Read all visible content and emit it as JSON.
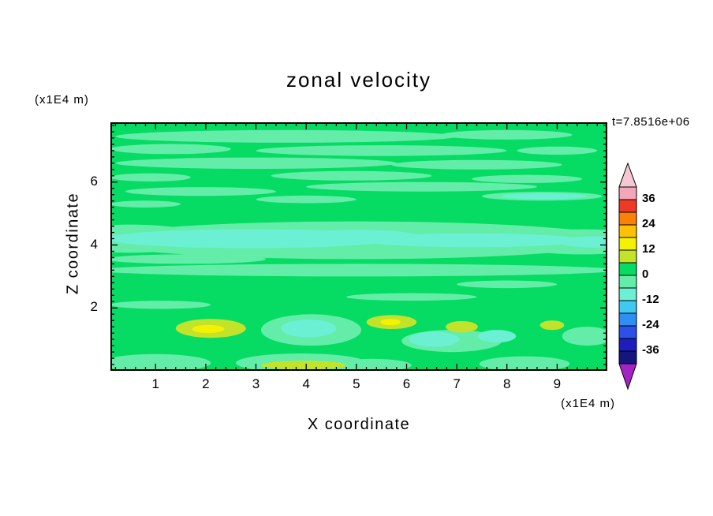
{
  "title": "zonal velocity",
  "timestamp": "t=7.8516e+06",
  "axes": {
    "x": {
      "label": "X coordinate",
      "unit": "(x1E4 m)",
      "tick_labels": [
        "1",
        "2",
        "3",
        "4",
        "5",
        "6",
        "7",
        "8",
        "9"
      ],
      "tick_values": [
        1,
        2,
        3,
        4,
        5,
        6,
        7,
        8,
        9
      ],
      "minor_step": 0.2,
      "range": [
        0.1,
        10.0
      ]
    },
    "y": {
      "label": "Z coordinate",
      "unit": "(x1E4 m)",
      "tick_labels": [
        "2",
        "4",
        "6"
      ],
      "tick_values": [
        2,
        4,
        6
      ],
      "minor_step": 0.2,
      "range": [
        0,
        7.9
      ]
    }
  },
  "colorbar": {
    "labels": [
      "36",
      "24",
      "12",
      "0",
      "-12",
      "-24",
      "-36"
    ],
    "levels": [
      42,
      36,
      30,
      24,
      18,
      12,
      6,
      0,
      -6,
      -12,
      -18,
      -24,
      -30,
      -36,
      -42
    ],
    "arrow_top_color": "#f6c8d4",
    "arrow_bottom_color": "#a224c4",
    "segment_colors": [
      "#f2a6ba",
      "#ee3a24",
      "#fb8206",
      "#ffc106",
      "#f4f203",
      "#c3e32a",
      "#06db63",
      "#63eda8",
      "#6cf0d4",
      "#3fc8f2",
      "#2f8ef2",
      "#2c50ea",
      "#1d1dc0",
      "#15157e"
    ]
  },
  "chart_data": {
    "type": "contour",
    "title": "zonal velocity",
    "xlabel": "X coordinate (x1E4 m)",
    "ylabel": "Z coordinate (x1E4 m)",
    "time_label": "t=7.8516e+06",
    "xlim": [
      0.1,
      10.0
    ],
    "ylim": [
      0,
      7.9
    ],
    "contour_interval": 6,
    "levels": [
      -42,
      -36,
      -30,
      -24,
      -18,
      -12,
      -6,
      0,
      6,
      12,
      18,
      24,
      30,
      36,
      42
    ],
    "field_colors": {
      "bg": "#06db63",
      "s": "#63eda8",
      "a": "#6cf0d4",
      "g": "#c3e32a",
      "y": "#f4f203"
    },
    "field_value_ranges": {
      "bg": "0 to 6",
      "s": "-6 to 0",
      "a": "-12 to -6",
      "g": "6 to 12",
      "y": "12 to 18"
    },
    "field_blobs": [
      {
        "x": 3.6,
        "z": 7.45,
        "rx": 3.4,
        "rz": 0.2,
        "c": "s"
      },
      {
        "x": 8.0,
        "z": 7.5,
        "rx": 1.3,
        "rz": 0.15,
        "c": "s"
      },
      {
        "x": 1.3,
        "z": 7.05,
        "rx": 1.2,
        "rz": 0.16,
        "c": "s"
      },
      {
        "x": 5.5,
        "z": 7.0,
        "rx": 2.5,
        "rz": 0.17,
        "c": "s"
      },
      {
        "x": 9.0,
        "z": 7.0,
        "rx": 0.8,
        "rz": 0.13,
        "c": "s"
      },
      {
        "x": 3.0,
        "z": 6.6,
        "rx": 2.8,
        "rz": 0.18,
        "c": "s"
      },
      {
        "x": 7.4,
        "z": 6.55,
        "rx": 1.7,
        "rz": 0.15,
        "c": "s"
      },
      {
        "x": 0.9,
        "z": 6.15,
        "rx": 0.8,
        "rz": 0.13,
        "c": "s"
      },
      {
        "x": 4.9,
        "z": 6.2,
        "rx": 1.6,
        "rz": 0.15,
        "c": "s"
      },
      {
        "x": 8.4,
        "z": 6.1,
        "rx": 1.1,
        "rz": 0.13,
        "c": "s"
      },
      {
        "x": 6.3,
        "z": 5.85,
        "rx": 2.3,
        "rz": 0.15,
        "c": "s"
      },
      {
        "x": 1.9,
        "z": 5.7,
        "rx": 1.5,
        "rz": 0.14,
        "c": "s"
      },
      {
        "x": 8.7,
        "z": 5.55,
        "rx": 1.2,
        "rz": 0.14,
        "c": "s"
      },
      {
        "x": 4.0,
        "z": 5.45,
        "rx": 1.0,
        "rz": 0.12,
        "c": "s"
      },
      {
        "x": 0.8,
        "z": 5.3,
        "rx": 0.7,
        "rz": 0.11,
        "c": "s"
      },
      {
        "x": 5.0,
        "z": 4.15,
        "rx": 5.2,
        "rz": 0.6,
        "c": "s"
      },
      {
        "x": 0.5,
        "z": 4.2,
        "rx": 1.5,
        "rz": 0.45,
        "c": "s"
      },
      {
        "x": 9.5,
        "z": 4.1,
        "rx": 1.5,
        "rz": 0.4,
        "c": "s"
      },
      {
        "x": 1.6,
        "z": 3.55,
        "rx": 1.6,
        "rz": 0.15,
        "c": "s"
      },
      {
        "x": 5.0,
        "z": 3.2,
        "rx": 5.2,
        "rz": 0.2,
        "c": "s"
      },
      {
        "x": 8.0,
        "z": 2.75,
        "rx": 1.0,
        "rz": 0.12,
        "c": "s"
      },
      {
        "x": 1.1,
        "z": 2.1,
        "rx": 1.0,
        "rz": 0.13,
        "c": "s"
      },
      {
        "x": 6.1,
        "z": 2.35,
        "rx": 1.3,
        "rz": 0.12,
        "c": "s"
      },
      {
        "x": 4.1,
        "z": 1.3,
        "rx": 1.0,
        "rz": 0.5,
        "c": "s"
      },
      {
        "x": 6.9,
        "z": 0.95,
        "rx": 1.0,
        "rz": 0.35,
        "c": "s"
      },
      {
        "x": 1.0,
        "z": 0.25,
        "rx": 1.1,
        "rz": 0.28,
        "c": "s"
      },
      {
        "x": 3.9,
        "z": 0.25,
        "rx": 1.3,
        "rz": 0.3,
        "c": "s"
      },
      {
        "x": 5.3,
        "z": 0.18,
        "rx": 0.8,
        "rz": 0.2,
        "c": "s"
      },
      {
        "x": 8.35,
        "z": 0.22,
        "rx": 0.9,
        "rz": 0.24,
        "c": "s"
      },
      {
        "x": 9.6,
        "z": 1.1,
        "rx": 0.5,
        "rz": 0.3,
        "c": "s"
      },
      {
        "x": 2.9,
        "z": 4.2,
        "rx": 2.9,
        "rz": 0.3,
        "c": "a"
      },
      {
        "x": 7.3,
        "z": 4.15,
        "rx": 2.2,
        "rz": 0.22,
        "c": "a"
      },
      {
        "x": 5.0,
        "z": 4.3,
        "rx": 1.2,
        "rz": 0.18,
        "c": "a"
      },
      {
        "x": 9.8,
        "z": 4.1,
        "rx": 0.8,
        "rz": 0.18,
        "c": "a"
      },
      {
        "x": 8.75,
        "z": 5.55,
        "rx": 0.85,
        "rz": 0.09,
        "c": "a"
      },
      {
        "x": 4.05,
        "z": 1.35,
        "rx": 0.55,
        "rz": 0.28,
        "c": "a"
      },
      {
        "x": 6.55,
        "z": 1.0,
        "rx": 0.5,
        "rz": 0.24,
        "c": "a"
      },
      {
        "x": 7.8,
        "z": 1.1,
        "rx": 0.38,
        "rz": 0.2,
        "c": "a"
      },
      {
        "x": 2.1,
        "z": 1.35,
        "rx": 0.7,
        "rz": 0.3,
        "c": "g"
      },
      {
        "x": 5.7,
        "z": 1.55,
        "rx": 0.5,
        "rz": 0.22,
        "c": "g"
      },
      {
        "x": 7.1,
        "z": 1.4,
        "rx": 0.32,
        "rz": 0.18,
        "c": "g"
      },
      {
        "x": 8.9,
        "z": 1.45,
        "rx": 0.24,
        "rz": 0.15,
        "c": "g"
      },
      {
        "x": 3.95,
        "z": 0.18,
        "rx": 0.85,
        "rz": 0.14,
        "c": "g"
      },
      {
        "x": 2.05,
        "z": 1.33,
        "rx": 0.32,
        "rz": 0.13,
        "c": "y"
      },
      {
        "x": 5.68,
        "z": 1.55,
        "rx": 0.2,
        "rz": 0.1,
        "c": "y"
      }
    ]
  }
}
